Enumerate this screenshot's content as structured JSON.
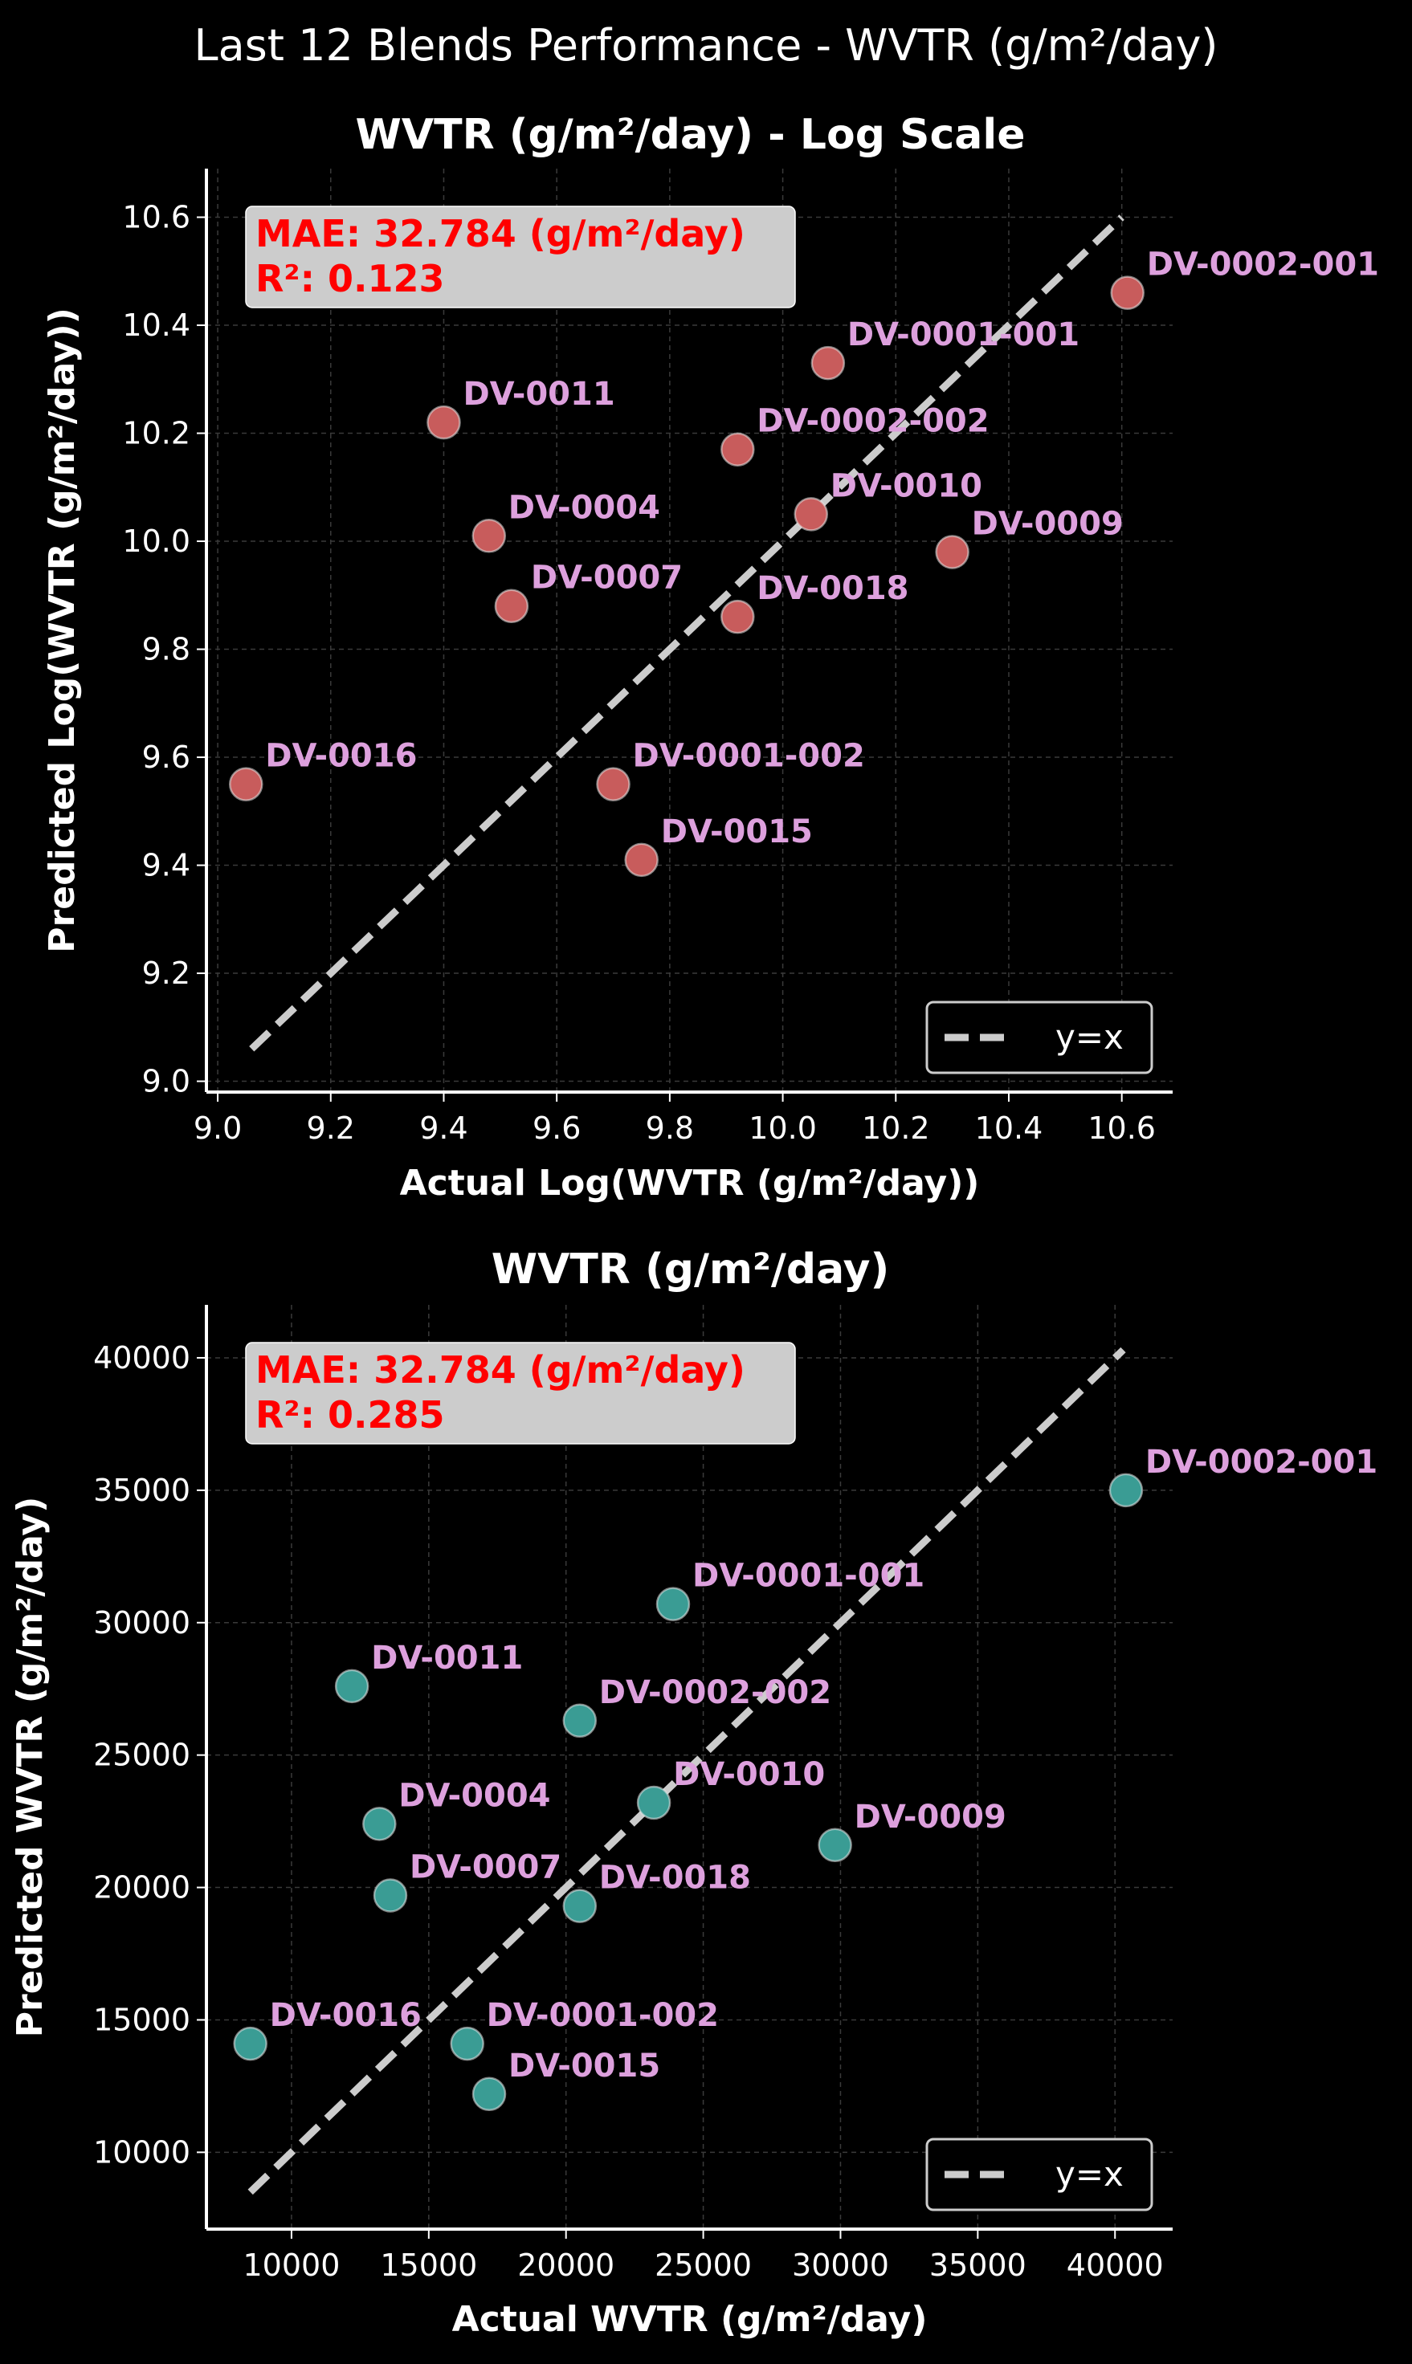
{
  "figure": {
    "suptitle": "Last 12 Blends Performance - WVTR (g/m²/day)",
    "background": "#000000"
  },
  "chart_data": [
    {
      "type": "scatter",
      "title": "WVTR (g/m²/day) - Log Scale",
      "xlabel": "Actual Log(WVTR (g/m²/day))",
      "ylabel": "Predicted Log(WVTR (g/m²/day))",
      "xlim": [
        8.98,
        10.69
      ],
      "ylim": [
        8.98,
        10.69
      ],
      "xticks": [
        "9.0",
        "9.2",
        "9.4",
        "9.6",
        "9.8",
        "10.0",
        "10.2",
        "10.4",
        "10.6"
      ],
      "yticks": [
        "9.0",
        "9.2",
        "9.4",
        "9.6",
        "9.8",
        "10.0",
        "10.2",
        "10.4",
        "10.6"
      ],
      "grid": true,
      "marker_color": "#c85c5c",
      "label_color": "#dda0dd",
      "reference_line": {
        "label": "y=x",
        "from": 9.06,
        "to": 10.6,
        "color": "#cccccc"
      },
      "legend": {
        "position": "lower-right",
        "entries": [
          "y=x"
        ]
      },
      "metrics": [
        "MAE: 32.784 (g/m²/day)",
        "R²: 0.123"
      ],
      "metrics_color": "#ff0000",
      "points": [
        {
          "label": "DV-0002-001",
          "x": 10.61,
          "y": 10.46
        },
        {
          "label": "DV-0001-001",
          "x": 10.08,
          "y": 10.33
        },
        {
          "label": "DV-0011",
          "x": 9.4,
          "y": 10.22
        },
        {
          "label": "DV-0002-002",
          "x": 9.92,
          "y": 10.17
        },
        {
          "label": "DV-0010",
          "x": 10.05,
          "y": 10.05
        },
        {
          "label": "DV-0004",
          "x": 9.48,
          "y": 10.01
        },
        {
          "label": "DV-0009",
          "x": 10.3,
          "y": 9.98
        },
        {
          "label": "DV-0007",
          "x": 9.52,
          "y": 9.88
        },
        {
          "label": "DV-0018",
          "x": 9.92,
          "y": 9.86
        },
        {
          "label": "DV-0016",
          "x": 9.05,
          "y": 9.55
        },
        {
          "label": "DV-0001-002",
          "x": 9.7,
          "y": 9.55
        },
        {
          "label": "DV-0015",
          "x": 9.75,
          "y": 9.41
        }
      ]
    },
    {
      "type": "scatter",
      "title": "WVTR (g/m²/day)",
      "xlabel": "Actual WVTR (g/m²/day)",
      "ylabel": "Predicted WVTR (g/m²/day)",
      "xlim": [
        6900,
        42100
      ],
      "ylim": [
        7100,
        42000
      ],
      "xticks": [
        "10000",
        "15000",
        "20000",
        "25000",
        "30000",
        "35000",
        "40000"
      ],
      "yticks": [
        "10000",
        "15000",
        "20000",
        "25000",
        "30000",
        "35000",
        "40000"
      ],
      "grid": true,
      "marker_color": "#3a9c94",
      "label_color": "#dda0dd",
      "reference_line": {
        "label": "y=x",
        "from": 8500,
        "to": 40300,
        "color": "#cccccc"
      },
      "legend": {
        "position": "lower-right",
        "entries": [
          "y=x"
        ]
      },
      "metrics": [
        "MAE: 32.784 (g/m²/day)",
        "R²: 0.285"
      ],
      "metrics_color": "#ff0000",
      "points": [
        {
          "label": "DV-0002-001",
          "x": 40400,
          "y": 35000
        },
        {
          "label": "DV-0001-001",
          "x": 23900,
          "y": 30700
        },
        {
          "label": "DV-0011",
          "x": 12200,
          "y": 27600
        },
        {
          "label": "DV-0002-002",
          "x": 20500,
          "y": 26300
        },
        {
          "label": "DV-0010",
          "x": 23200,
          "y": 23200
        },
        {
          "label": "DV-0004",
          "x": 13200,
          "y": 22400
        },
        {
          "label": "DV-0009",
          "x": 29800,
          "y": 21600
        },
        {
          "label": "DV-0007",
          "x": 13600,
          "y": 19700
        },
        {
          "label": "DV-0018",
          "x": 20500,
          "y": 19300
        },
        {
          "label": "DV-0016",
          "x": 8500,
          "y": 14100
        },
        {
          "label": "DV-0001-002",
          "x": 16400,
          "y": 14100
        },
        {
          "label": "DV-0015",
          "x": 17200,
          "y": 12200
        }
      ]
    }
  ]
}
